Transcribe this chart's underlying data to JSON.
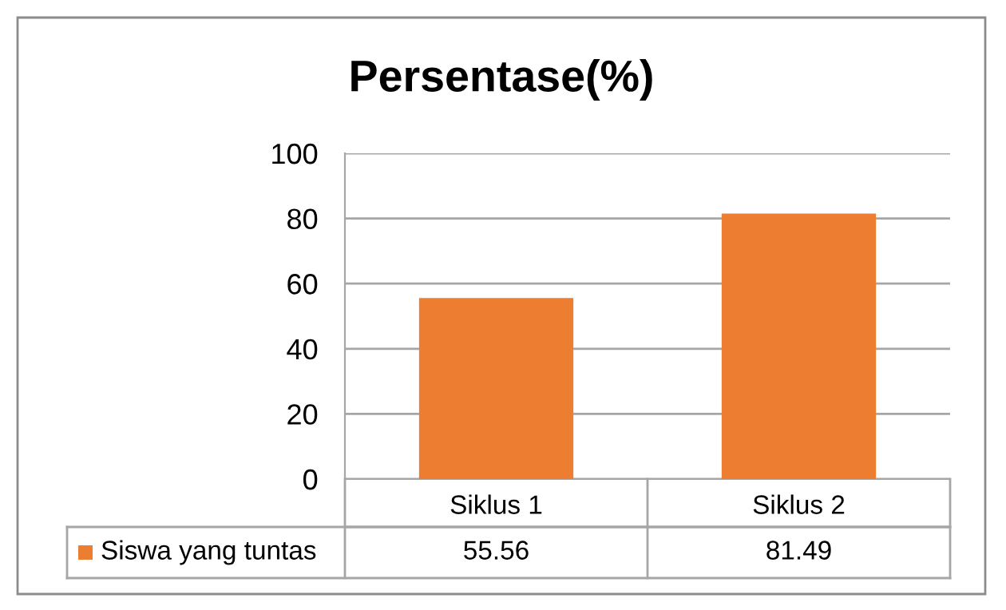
{
  "chart_data": {
    "type": "bar",
    "title": "Persentase(%)",
    "categories": [
      "Siklus 1",
      "Siklus 2"
    ],
    "series": [
      {
        "name": "Siswa yang tuntas",
        "color": "#ed7d31",
        "values": [
          55.56,
          81.49
        ]
      }
    ],
    "ylim": [
      0,
      100
    ],
    "yticks": [
      0,
      20,
      40,
      60,
      80,
      100
    ],
    "grid": "y",
    "legend": "bottom",
    "data_labels": true
  }
}
